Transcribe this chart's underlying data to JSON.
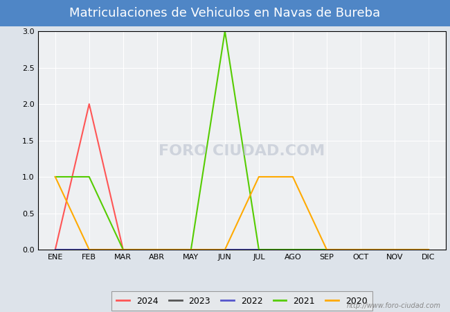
{
  "title": "Matriculaciones de Vehiculos en Navas de Bureba",
  "title_color": "#ffffff",
  "title_bg_color": "#4f86c6",
  "ylim": [
    0.0,
    3.0
  ],
  "yticks": [
    0.0,
    0.5,
    1.0,
    1.5,
    2.0,
    2.5,
    3.0
  ],
  "months": [
    "ENE",
    "FEB",
    "MAR",
    "ABR",
    "MAY",
    "JUN",
    "JUL",
    "AGO",
    "SEP",
    "OCT",
    "NOV",
    "DIC"
  ],
  "series": {
    "2024": {
      "color": "#ff5555",
      "data": [
        0,
        2,
        0,
        null,
        null,
        null,
        null,
        null,
        null,
        null,
        null,
        null
      ]
    },
    "2023": {
      "color": "#555555",
      "data": [
        0,
        0,
        0,
        0,
        0,
        0,
        0,
        0,
        0,
        0,
        0,
        0
      ]
    },
    "2022": {
      "color": "#5555cc",
      "data": [
        0,
        0,
        0,
        0,
        0,
        0,
        0,
        0,
        0,
        0,
        0,
        0
      ]
    },
    "2021": {
      "color": "#55cc00",
      "data": [
        1,
        1,
        0,
        0,
        0,
        3,
        0,
        0,
        0,
        0,
        0,
        0
      ]
    },
    "2020": {
      "color": "#ffaa00",
      "data": [
        1,
        0,
        0,
        0,
        0,
        0,
        1,
        1,
        0,
        0,
        0,
        0
      ]
    }
  },
  "legend_order": [
    "2024",
    "2023",
    "2022",
    "2021",
    "2020"
  ],
  "watermark_text": "http://www.foro-ciudad.com",
  "watermark_overlay": "FORO CIUDAD.COM",
  "fig_bg_color": "#dde3ea",
  "plot_bg_color": "#eef0f2",
  "grid_color": "#ffffff",
  "border_color": "#000000",
  "tick_fontsize": 8,
  "legend_fontsize": 9,
  "title_fontsize": 13
}
